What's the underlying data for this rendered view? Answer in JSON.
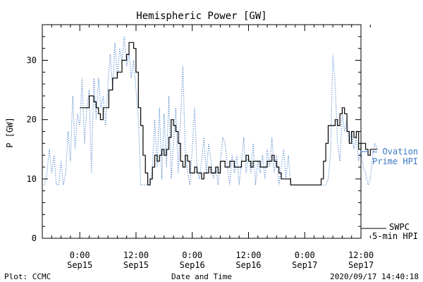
{
  "chart_data": {
    "type": "line",
    "title": "Hemispheric Power [GW]",
    "ylabel": "P [GW]",
    "xlabel": "Date and Time",
    "x_unit": "hours since Sep15 0:00",
    "xlim": [
      -8,
      60
    ],
    "ylim": [
      0,
      36
    ],
    "y_ticks": [
      0,
      10,
      20,
      30
    ],
    "x_ticks": [
      {
        "value": 0,
        "label_time": "0:00",
        "label_day": "Sep15"
      },
      {
        "value": 12,
        "label_time": "12:00",
        "label_day": "Sep15"
      },
      {
        "value": 24,
        "label_time": "0:00",
        "label_day": "Sep16"
      },
      {
        "value": 36,
        "label_time": "12:00",
        "label_day": "Sep16"
      },
      {
        "value": 48,
        "label_time": "0:00",
        "label_day": "Sep17"
      },
      {
        "value": 60,
        "label_time": "12:00",
        "label_day": "Sep17"
      }
    ],
    "grid": false,
    "series": [
      {
        "name": "Ovation Prime HPI",
        "legend_line1": "— Ovation",
        "legend_line2": "Prime HPI",
        "color": "#3a78c4",
        "style": "dotted",
        "points": [
          [
            -7.5,
            9
          ],
          [
            -7,
            11
          ],
          [
            -6.5,
            15
          ],
          [
            -6,
            11
          ],
          [
            -5.5,
            14
          ],
          [
            -5,
            9
          ],
          [
            -4.5,
            9
          ],
          [
            -4,
            13
          ],
          [
            -3.5,
            9
          ],
          [
            -3,
            11
          ],
          [
            -2.5,
            18
          ],
          [
            -2,
            13
          ],
          [
            -1.5,
            24
          ],
          [
            -1,
            15
          ],
          [
            -0.5,
            21
          ],
          [
            0,
            19
          ],
          [
            0.5,
            27
          ],
          [
            1,
            16
          ],
          [
            1.5,
            22
          ],
          [
            2,
            25
          ],
          [
            2.5,
            11
          ],
          [
            3,
            27
          ],
          [
            3.5,
            20
          ],
          [
            4,
            27
          ],
          [
            4.5,
            22
          ],
          [
            5,
            24
          ],
          [
            5.5,
            19
          ],
          [
            6,
            26
          ],
          [
            6.5,
            31
          ],
          [
            7,
            25
          ],
          [
            7.5,
            33
          ],
          [
            8,
            27
          ],
          [
            8.5,
            32
          ],
          [
            9,
            30
          ],
          [
            9.5,
            34
          ],
          [
            10,
            29
          ],
          [
            10.5,
            31
          ],
          [
            11,
            27
          ],
          [
            11.5,
            30
          ],
          [
            12,
            25
          ],
          [
            12.5,
            20
          ],
          [
            13,
            9
          ],
          [
            13.5,
            9
          ],
          [
            14,
            9
          ],
          [
            14.5,
            9
          ],
          [
            15,
            9
          ],
          [
            15.5,
            12
          ],
          [
            16,
            20
          ],
          [
            16.5,
            12
          ],
          [
            17,
            22
          ],
          [
            17.5,
            10
          ],
          [
            18,
            21
          ],
          [
            18.5,
            12
          ],
          [
            19,
            24
          ],
          [
            19.5,
            10
          ],
          [
            20,
            16
          ],
          [
            20.5,
            22
          ],
          [
            21,
            11
          ],
          [
            21.5,
            20
          ],
          [
            22,
            29
          ],
          [
            22.5,
            15
          ],
          [
            23,
            11
          ],
          [
            23.5,
            9
          ],
          [
            24,
            15
          ],
          [
            24.5,
            22
          ],
          [
            25,
            12
          ],
          [
            25.5,
            10
          ],
          [
            26,
            13
          ],
          [
            26.5,
            17
          ],
          [
            27,
            11
          ],
          [
            27.5,
            16
          ],
          [
            28,
            13
          ],
          [
            28.5,
            10
          ],
          [
            29,
            12
          ],
          [
            29.5,
            9
          ],
          [
            30,
            13
          ],
          [
            30.5,
            17
          ],
          [
            31,
            16
          ],
          [
            31.5,
            12
          ],
          [
            32,
            9
          ],
          [
            32.5,
            14
          ],
          [
            33,
            11
          ],
          [
            33.5,
            14
          ],
          [
            34,
            9
          ],
          [
            34.5,
            13
          ],
          [
            35,
            17
          ],
          [
            35.5,
            11
          ],
          [
            36,
            14
          ],
          [
            36.5,
            11
          ],
          [
            37,
            16
          ],
          [
            37.5,
            9
          ],
          [
            38,
            13
          ],
          [
            38.5,
            11
          ],
          [
            39,
            14
          ],
          [
            39.5,
            10
          ],
          [
            40,
            15
          ],
          [
            40.5,
            12
          ],
          [
            41,
            17
          ],
          [
            41.5,
            11
          ],
          [
            42,
            14
          ],
          [
            42.5,
            9
          ],
          [
            43,
            12
          ],
          [
            43.5,
            15
          ],
          [
            44,
            10
          ],
          [
            44.5,
            14
          ],
          [
            45,
            9
          ],
          [
            45.5,
            9
          ],
          [
            46,
            9
          ],
          [
            46.5,
            9
          ],
          [
            47,
            9
          ],
          [
            47.5,
            9
          ],
          [
            48,
            9
          ],
          [
            48.5,
            9
          ],
          [
            49,
            9
          ],
          [
            49.5,
            9
          ],
          [
            50,
            9
          ],
          [
            50.5,
            9
          ],
          [
            51,
            9
          ],
          [
            51.5,
            9
          ],
          [
            52,
            9
          ],
          [
            52.5,
            9
          ],
          [
            53,
            10
          ],
          [
            53.5,
            14
          ],
          [
            54,
            31
          ],
          [
            54.5,
            26
          ],
          [
            55,
            16
          ],
          [
            55.5,
            13
          ],
          [
            56,
            21
          ],
          [
            56.5,
            18
          ],
          [
            57,
            20
          ],
          [
            57.5,
            16
          ],
          [
            58,
            18
          ],
          [
            58.5,
            15
          ],
          [
            59,
            17
          ],
          [
            59.5,
            13
          ],
          [
            60,
            15
          ],
          [
            60.5,
            12
          ],
          [
            61,
            11
          ],
          [
            61.5,
            9
          ],
          [
            62,
            10
          ],
          [
            62.5,
            14
          ],
          [
            63,
            16
          ],
          [
            63.5,
            15
          ]
        ]
      },
      {
        "name": "SWPC 5-min HPI",
        "legend_line1": "SWPC",
        "legend_line2": "5-min HPI",
        "color": "#000000",
        "style": "solid",
        "points": [
          [
            0,
            22
          ],
          [
            1.5,
            22
          ],
          [
            2,
            24
          ],
          [
            2.7,
            24
          ],
          [
            3,
            23
          ],
          [
            3.5,
            22
          ],
          [
            4,
            21
          ],
          [
            4.4,
            20
          ],
          [
            5,
            22
          ],
          [
            5.7,
            22
          ],
          [
            6.2,
            25
          ],
          [
            7,
            27
          ],
          [
            8,
            28
          ],
          [
            9,
            30
          ],
          [
            10,
            31
          ],
          [
            10.5,
            33
          ],
          [
            11,
            33
          ],
          [
            11.5,
            32
          ],
          [
            12,
            28
          ],
          [
            12.5,
            22
          ],
          [
            13,
            19
          ],
          [
            13.5,
            14
          ],
          [
            14,
            11
          ],
          [
            14.5,
            9
          ],
          [
            15,
            10
          ],
          [
            15.5,
            12
          ],
          [
            16,
            14
          ],
          [
            16.5,
            13
          ],
          [
            17,
            14
          ],
          [
            17.5,
            15
          ],
          [
            18,
            14
          ],
          [
            18.5,
            15
          ],
          [
            19,
            17
          ],
          [
            19.5,
            20
          ],
          [
            20,
            19
          ],
          [
            20.5,
            18
          ],
          [
            21,
            16
          ],
          [
            21.5,
            13
          ],
          [
            22,
            12
          ],
          [
            22.5,
            14
          ],
          [
            23,
            13
          ],
          [
            23.5,
            11
          ],
          [
            24,
            11
          ],
          [
            24.5,
            12
          ],
          [
            25,
            11
          ],
          [
            25.5,
            11
          ],
          [
            26,
            10
          ],
          [
            26.5,
            11
          ],
          [
            27,
            11
          ],
          [
            27.5,
            12
          ],
          [
            28,
            11
          ],
          [
            28.5,
            11
          ],
          [
            29,
            12
          ],
          [
            29.5,
            11
          ],
          [
            30,
            13
          ],
          [
            30.5,
            13
          ],
          [
            31,
            12
          ],
          [
            31.5,
            12
          ],
          [
            32,
            13
          ],
          [
            32.5,
            13
          ],
          [
            33,
            12
          ],
          [
            33.5,
            12
          ],
          [
            34,
            12
          ],
          [
            34.5,
            13
          ],
          [
            35,
            13
          ],
          [
            35.5,
            14
          ],
          [
            36,
            13
          ],
          [
            36.5,
            12
          ],
          [
            37,
            13
          ],
          [
            37.5,
            13
          ],
          [
            38,
            13
          ],
          [
            38.5,
            12
          ],
          [
            39,
            12
          ],
          [
            39.5,
            12
          ],
          [
            40,
            13
          ],
          [
            40.5,
            13
          ],
          [
            41,
            14
          ],
          [
            41.5,
            13
          ],
          [
            42,
            12
          ],
          [
            42.5,
            11
          ],
          [
            43,
            10
          ],
          [
            43.5,
            10
          ],
          [
            44,
            10
          ],
          [
            44.5,
            10
          ],
          [
            45,
            9
          ],
          [
            46,
            9
          ],
          [
            47,
            9
          ],
          [
            48,
            9
          ],
          [
            49,
            9
          ],
          [
            50,
            9
          ],
          [
            51,
            9
          ],
          [
            51.5,
            10
          ],
          [
            52,
            13
          ],
          [
            52.5,
            16
          ],
          [
            53,
            19
          ],
          [
            54,
            19
          ],
          [
            54.5,
            20
          ],
          [
            55,
            19
          ],
          [
            55.5,
            21
          ],
          [
            56,
            22
          ],
          [
            56.5,
            21
          ],
          [
            57,
            18
          ],
          [
            57.5,
            16
          ],
          [
            58,
            18
          ],
          [
            58.5,
            17
          ],
          [
            59,
            18
          ],
          [
            59.5,
            15
          ],
          [
            60,
            16
          ],
          [
            60.5,
            16
          ],
          [
            61,
            15
          ],
          [
            61.5,
            14
          ],
          [
            62,
            15
          ],
          [
            62.5,
            15
          ],
          [
            63,
            15
          ],
          [
            63.5,
            15
          ]
        ]
      }
    ]
  },
  "footer": {
    "left": "Plot: CCMC",
    "center": "Date and Time",
    "right": "2020/09/17 14:40:18"
  }
}
